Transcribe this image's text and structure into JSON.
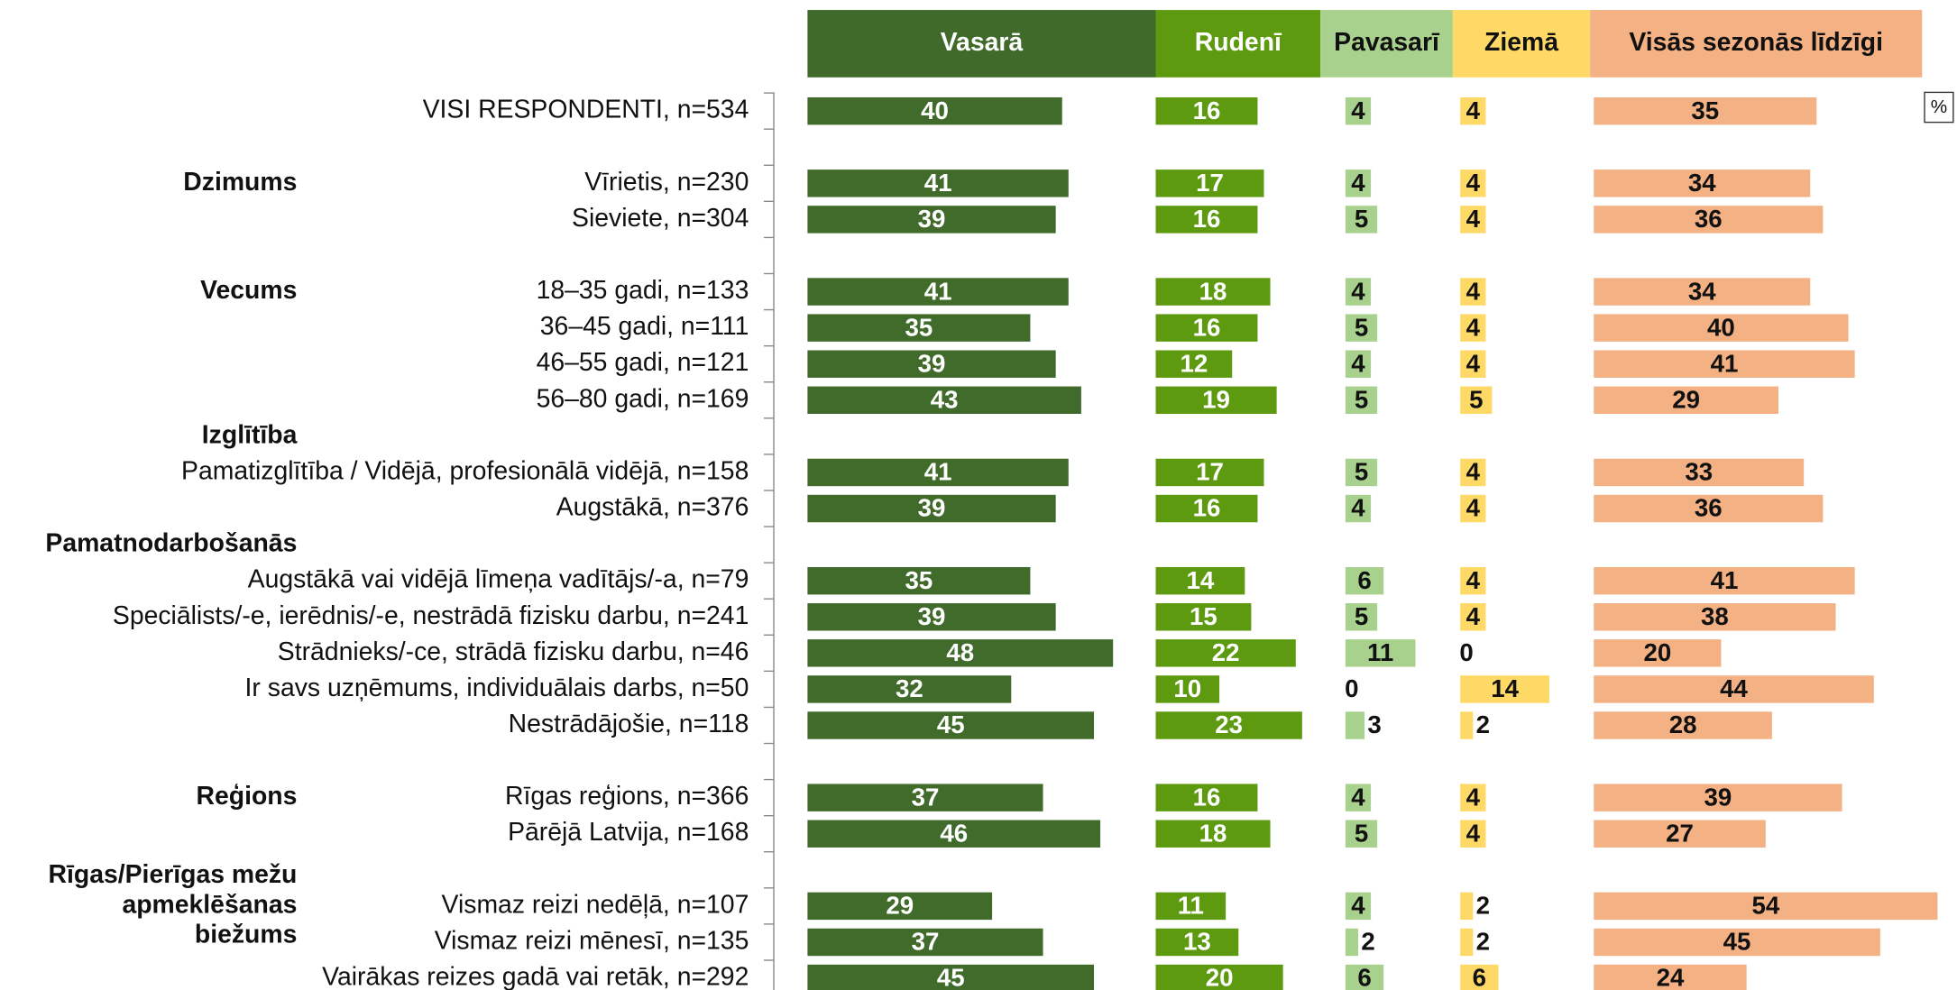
{
  "chart_data": {
    "type": "bar",
    "orientation": "horizontal",
    "unit_label": "%",
    "categories": [
      "VISI RESPONDENTI, n=534",
      null,
      "Vīrietis, n=230",
      "Sieviete, n=304",
      null,
      "18–35 gadi, n=133",
      "36–45 gadi, n=111",
      "46–55 gadi, n=121",
      "56–80 gadi, n=169",
      null,
      "Pamatizglītība / Vidējā, profesionālā vidējā, n=158",
      "Augstākā, n=376",
      null,
      "Augstākā vai vidējā līmeņa vadītājs/-a, n=79",
      "Speciālists/-e, ierēdnis/-e, nestrādā fizisku darbu, n=241",
      "Strādnieks/-ce, strādā fizisku darbu, n=46",
      "Ir savs uzņēmums, individuālais darbs, n=50",
      "Nestrādājošie, n=118",
      null,
      "Rīgas reģions, n=366",
      "Pārējā Latvija, n=168",
      null,
      "Vismaz reizi nedēļā, n=107",
      "Vismaz reizi mēnesī, n=135",
      "Vairākas reizes gadā vai retāk, n=292"
    ],
    "groups": [
      {
        "label": [
          "Dzimums"
        ],
        "row": 2
      },
      {
        "label": [
          "Vecums"
        ],
        "row": 5
      },
      {
        "label": [
          "Izglītība"
        ],
        "row": 9
      },
      {
        "label": [
          "Pamatnodarbošanās"
        ],
        "row": 12
      },
      {
        "label": [
          "Reģions"
        ],
        "row": 19
      },
      {
        "label": [
          "Rīgas/Pierīgas mežu",
          "apmeklēšanas",
          "biežums"
        ],
        "row": 22
      }
    ],
    "series": [
      {
        "name": "Vasarā",
        "color": "#416b2b",
        "header_color": "#3f6a2a",
        "label_color": "#ffffff",
        "values": [
          40,
          null,
          41,
          39,
          null,
          41,
          35,
          39,
          43,
          null,
          41,
          39,
          null,
          35,
          39,
          48,
          32,
          45,
          null,
          37,
          46,
          null,
          29,
          37,
          45
        ]
      },
      {
        "name": "Rudenī",
        "color": "#5e9a0f",
        "header_color": "#5e9a0f",
        "label_color": "#ffffff",
        "values": [
          16,
          null,
          17,
          16,
          null,
          18,
          16,
          12,
          19,
          null,
          17,
          16,
          null,
          14,
          15,
          22,
          10,
          23,
          null,
          16,
          18,
          null,
          11,
          13,
          20
        ]
      },
      {
        "name": "Pavasarī",
        "color": "#a9d18e",
        "header_color": "#a9d18e",
        "label_color": "#111111",
        "values": [
          4,
          null,
          4,
          5,
          null,
          4,
          5,
          4,
          5,
          null,
          5,
          4,
          null,
          6,
          5,
          11,
          0,
          3,
          null,
          4,
          5,
          null,
          4,
          2,
          6
        ]
      },
      {
        "name": "Ziemā",
        "color": "#ffd966",
        "header_color": "#ffd966",
        "label_color": "#111111",
        "values": [
          4,
          null,
          4,
          4,
          null,
          4,
          4,
          4,
          5,
          null,
          4,
          4,
          null,
          4,
          4,
          0,
          14,
          2,
          null,
          4,
          4,
          null,
          2,
          2,
          6
        ]
      },
      {
        "name": "Visās sezonās līdzīgi",
        "color": "#f4b183",
        "header_color": "#f4b183",
        "label_color": "#111111",
        "values": [
          35,
          null,
          34,
          36,
          null,
          34,
          40,
          41,
          29,
          null,
          33,
          36,
          null,
          41,
          38,
          20,
          44,
          28,
          null,
          39,
          27,
          null,
          54,
          45,
          24
        ]
      }
    ]
  }
}
